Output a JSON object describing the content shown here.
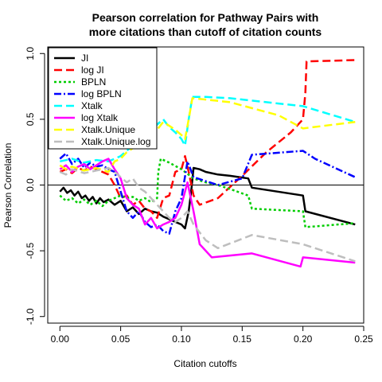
{
  "chart_data": {
    "type": "line",
    "title_lines": [
      "Pearson correlation for Pathway Pairs with",
      "more citations than cutoff of citation counts"
    ],
    "xlabel": "Citation cutoffs",
    "ylabel": "Pearson Correlation",
    "xlim": [
      -0.01,
      0.25
    ],
    "ylim": [
      -1.05,
      1.05
    ],
    "xticks": [
      0.0,
      0.05,
      0.1,
      0.15,
      0.2,
      0.25
    ],
    "xtick_labels": [
      "0.00",
      "0.05",
      "0.10",
      "0.15",
      "0.20",
      "0.25"
    ],
    "yticks": [
      -1.0,
      -0.5,
      0.0,
      0.5,
      1.0
    ],
    "ytick_labels": [
      "-1.0",
      "-0.5",
      "0.0",
      "0.5",
      "1.0"
    ],
    "reference_line_y": 0,
    "legend_position": "top-left",
    "series": [
      {
        "name": "JI",
        "color": "#000000",
        "dash": "solid",
        "x": [
          0.0,
          0.003,
          0.006,
          0.009,
          0.012,
          0.015,
          0.018,
          0.021,
          0.024,
          0.027,
          0.03,
          0.033,
          0.036,
          0.04,
          0.045,
          0.05,
          0.055,
          0.06,
          0.065,
          0.07,
          0.075,
          0.08,
          0.085,
          0.09,
          0.095,
          0.1,
          0.103,
          0.106,
          0.108,
          0.11,
          0.115,
          0.12,
          0.13,
          0.14,
          0.155,
          0.158,
          0.2,
          0.202,
          0.243
        ],
        "y": [
          -0.05,
          -0.02,
          -0.06,
          -0.04,
          -0.08,
          -0.05,
          -0.1,
          -0.08,
          -0.12,
          -0.09,
          -0.14,
          -0.1,
          -0.13,
          -0.11,
          -0.15,
          -0.12,
          -0.2,
          -0.17,
          -0.22,
          -0.18,
          -0.2,
          -0.21,
          -0.24,
          -0.26,
          -0.28,
          -0.3,
          -0.33,
          -0.2,
          -0.05,
          0.13,
          0.12,
          0.1,
          0.08,
          0.07,
          0.05,
          -0.02,
          -0.08,
          -0.2,
          -0.3
        ]
      },
      {
        "name": "log JI",
        "color": "#ff0000",
        "dash": "long",
        "x": [
          0.0,
          0.005,
          0.01,
          0.015,
          0.02,
          0.025,
          0.03,
          0.035,
          0.04,
          0.045,
          0.05,
          0.055,
          0.06,
          0.065,
          0.07,
          0.075,
          0.08,
          0.085,
          0.09,
          0.095,
          0.1,
          0.103,
          0.106,
          0.11,
          0.115,
          0.13,
          0.15,
          0.17,
          0.19,
          0.2,
          0.202,
          0.203,
          0.243
        ],
        "y": [
          0.1,
          0.12,
          0.09,
          0.13,
          0.11,
          0.14,
          0.12,
          0.1,
          0.08,
          0.0,
          -0.1,
          -0.08,
          -0.15,
          -0.12,
          -0.18,
          -0.2,
          -0.25,
          -0.1,
          -0.08,
          0.1,
          0.12,
          0.22,
          0.1,
          -0.08,
          -0.15,
          -0.1,
          0.07,
          0.25,
          0.4,
          0.5,
          0.7,
          0.94,
          0.95
        ]
      },
      {
        "name": "BPLN",
        "color": "#00cd00",
        "dash": "dotted",
        "x": [
          0.0,
          0.005,
          0.01,
          0.015,
          0.02,
          0.025,
          0.03,
          0.035,
          0.04,
          0.045,
          0.05,
          0.055,
          0.06,
          0.065,
          0.07,
          0.075,
          0.08,
          0.081,
          0.083,
          0.09,
          0.1,
          0.11,
          0.12,
          0.13,
          0.14,
          0.155,
          0.158,
          0.2,
          0.202,
          0.243
        ],
        "y": [
          -0.08,
          -0.12,
          -0.1,
          -0.14,
          -0.11,
          -0.15,
          -0.12,
          -0.16,
          -0.12,
          -0.1,
          -0.08,
          -0.1,
          -0.09,
          -0.12,
          -0.1,
          -0.13,
          -0.1,
          0.1,
          0.2,
          0.17,
          0.12,
          0.05,
          0.02,
          0.0,
          -0.03,
          -0.08,
          -0.18,
          -0.2,
          -0.32,
          -0.29
        ]
      },
      {
        "name": "log BPLN",
        "color": "#0000ff",
        "dash": "dotdash",
        "x": [
          0.0,
          0.005,
          0.01,
          0.015,
          0.02,
          0.025,
          0.03,
          0.035,
          0.04,
          0.045,
          0.05,
          0.055,
          0.06,
          0.065,
          0.07,
          0.075,
          0.08,
          0.085,
          0.09,
          0.095,
          0.1,
          0.105,
          0.11,
          0.13,
          0.15,
          0.158,
          0.2,
          0.21,
          0.243
        ],
        "y": [
          0.2,
          0.24,
          0.16,
          0.2,
          0.13,
          0.17,
          0.14,
          0.15,
          0.12,
          0.1,
          -0.05,
          -0.2,
          -0.25,
          -0.2,
          -0.28,
          -0.32,
          -0.3,
          -0.35,
          -0.37,
          -0.2,
          -0.1,
          0.18,
          0.06,
          0.0,
          0.05,
          0.23,
          0.26,
          0.2,
          0.06
        ]
      },
      {
        "name": "Xtalk",
        "color": "#00ffff",
        "dash": "long",
        "x": [
          0.0,
          0.01,
          0.02,
          0.03,
          0.04,
          0.045,
          0.05,
          0.06,
          0.07,
          0.08,
          0.085,
          0.09,
          0.095,
          0.1,
          0.103,
          0.106,
          0.109,
          0.12,
          0.14,
          0.16,
          0.18,
          0.2,
          0.243
        ],
        "y": [
          0.18,
          0.2,
          0.17,
          0.19,
          0.18,
          0.2,
          0.22,
          0.3,
          0.38,
          0.46,
          0.5,
          0.44,
          0.4,
          0.35,
          0.3,
          0.5,
          0.67,
          0.67,
          0.66,
          0.64,
          0.62,
          0.6,
          0.48
        ]
      },
      {
        "name": "log Xtalk",
        "color": "#ff00ff",
        "dash": "solid",
        "x": [
          0.0,
          0.005,
          0.01,
          0.015,
          0.02,
          0.025,
          0.03,
          0.035,
          0.04,
          0.045,
          0.05,
          0.055,
          0.06,
          0.065,
          0.07,
          0.075,
          0.08,
          0.085,
          0.09,
          0.095,
          0.1,
          0.105,
          0.11,
          0.115,
          0.12,
          0.125,
          0.158,
          0.198,
          0.2,
          0.243
        ],
        "y": [
          0.12,
          0.15,
          0.1,
          0.14,
          0.16,
          0.12,
          0.15,
          0.18,
          0.2,
          0.12,
          0.05,
          -0.1,
          -0.15,
          -0.18,
          -0.3,
          -0.25,
          -0.33,
          -0.3,
          -0.28,
          -0.25,
          -0.15,
          0.02,
          -0.2,
          -0.45,
          -0.5,
          -0.55,
          -0.52,
          -0.62,
          -0.55,
          -0.59
        ]
      },
      {
        "name": "Xtalk.Unique",
        "color": "#ffff00",
        "dash": "long",
        "x": [
          0.0,
          0.005,
          0.01,
          0.02,
          0.03,
          0.04,
          0.045,
          0.05,
          0.055,
          0.06,
          0.065,
          0.07,
          0.075,
          0.08,
          0.085,
          0.09,
          0.095,
          0.1,
          0.103,
          0.106,
          0.109,
          0.12,
          0.14,
          0.16,
          0.18,
          0.2,
          0.243
        ],
        "y": [
          0.15,
          0.12,
          0.14,
          0.11,
          0.13,
          0.1,
          0.18,
          0.2,
          0.25,
          0.28,
          0.3,
          0.35,
          0.38,
          0.42,
          0.48,
          0.45,
          0.42,
          0.38,
          0.35,
          0.5,
          0.66,
          0.65,
          0.63,
          0.58,
          0.53,
          0.43,
          0.48
        ]
      },
      {
        "name": "Xtalk.Unique.log",
        "color": "#bebebe",
        "dash": "long",
        "x": [
          0.0,
          0.005,
          0.01,
          0.02,
          0.03,
          0.04,
          0.045,
          0.05,
          0.055,
          0.06,
          0.065,
          0.07,
          0.075,
          0.08,
          0.085,
          0.09,
          0.095,
          0.1,
          0.105,
          0.11,
          0.12,
          0.13,
          0.158,
          0.2,
          0.243
        ],
        "y": [
          0.1,
          0.08,
          0.12,
          0.09,
          0.11,
          0.13,
          0.1,
          0.06,
          0.02,
          0.05,
          -0.02,
          -0.05,
          -0.1,
          -0.15,
          -0.2,
          -0.25,
          -0.28,
          -0.25,
          -0.2,
          -0.3,
          -0.42,
          -0.48,
          -0.38,
          -0.45,
          -0.58
        ]
      }
    ]
  }
}
